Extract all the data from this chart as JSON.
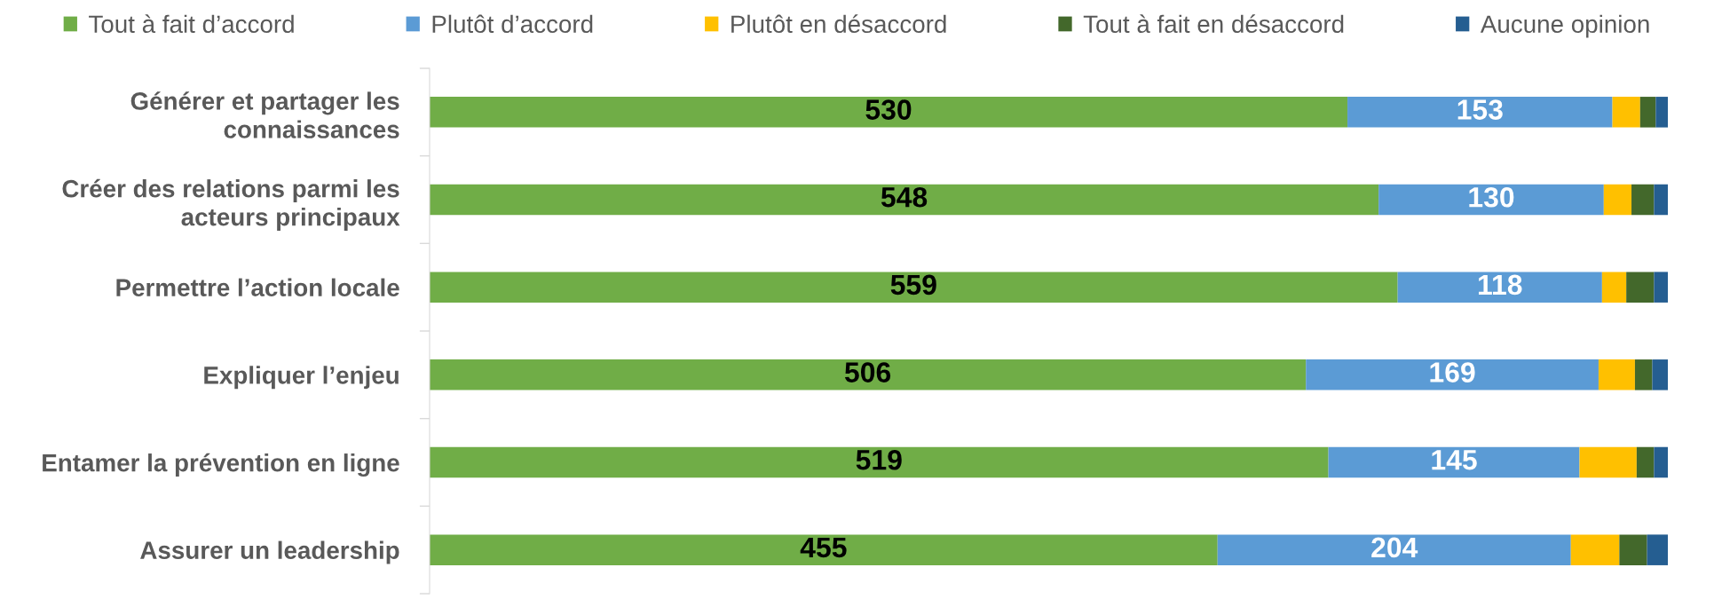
{
  "chart_data": {
    "type": "bar",
    "orientation": "horizontal",
    "stacked": true,
    "legend": "top",
    "grid": false,
    "tick_labels": "y",
    "categories": [
      "Générer et partager les\nconnaissances",
      "Créer des relations parmi les\nacteurs principaux",
      "Permettre l’action locale",
      "Expliquer l’enjeu",
      "Entamer la prévention en ligne",
      "Assurer un leadership"
    ],
    "xlim": [
      0,
      715
    ],
    "series": [
      {
        "name": "Tout à fait d’accord",
        "color": "#70ad47",
        "values": [
          530,
          548,
          559,
          506,
          519,
          455
        ],
        "value_labels": [
          "530",
          "548",
          "559",
          "506",
          "519",
          "455"
        ]
      },
      {
        "name": "Plutôt d’accord",
        "color": "#5b9bd5",
        "values": [
          153,
          130,
          118,
          169,
          145,
          204
        ],
        "value_labels": [
          "153",
          "130",
          "118",
          "169",
          "145",
          "204"
        ]
      },
      {
        "name": "Plutôt en désaccord",
        "color": "#ffc000",
        "values": [
          16,
          16,
          14,
          21,
          33,
          28
        ]
      },
      {
        "name": "Tout à fait en désaccord",
        "color": "#43682b",
        "values": [
          9,
          13,
          16,
          10,
          10,
          16
        ]
      },
      {
        "name": "Aucune opinion",
        "color": "#255e91",
        "values": [
          7,
          8,
          8,
          9,
          8,
          12
        ]
      }
    ]
  }
}
